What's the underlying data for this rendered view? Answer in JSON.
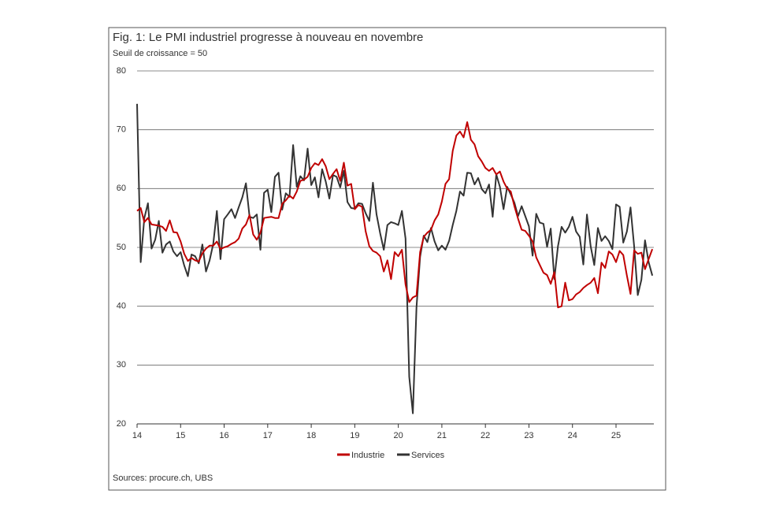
{
  "chart_data": {
    "type": "line",
    "title": "Fig. 1: Le PMI industriel progresse à nouveau en novembre",
    "subtitle": "Seuil de croissance = 50",
    "source": "Sources: procure.ch, UBS",
    "categories": [
      "14",
      null,
      null,
      null,
      null,
      null,
      null,
      null,
      null,
      null,
      null,
      null,
      "15",
      null,
      null,
      null,
      null,
      null,
      null,
      null,
      null,
      null,
      null,
      null,
      "16",
      null,
      null,
      null,
      null,
      null,
      null,
      null,
      null,
      null,
      null,
      null,
      "17",
      null,
      null,
      null,
      null,
      null,
      null,
      null,
      null,
      null,
      null,
      null,
      "18",
      null,
      null,
      null,
      null,
      null,
      null,
      null,
      null,
      null,
      null,
      null,
      "19",
      null,
      null,
      null,
      null,
      null,
      null,
      null,
      null,
      null,
      null,
      null,
      "20",
      null,
      null,
      null,
      null,
      null,
      null,
      null,
      null,
      null,
      null,
      null,
      "21",
      null,
      null,
      null,
      null,
      null,
      null,
      null,
      null,
      null,
      null,
      null,
      "22",
      null,
      null,
      null,
      null,
      null,
      null,
      null,
      null,
      null,
      null,
      null,
      "23",
      null,
      null,
      null,
      null,
      null,
      null,
      null,
      null,
      null,
      null,
      null,
      "24",
      null,
      null,
      null,
      null,
      null,
      null,
      null,
      null,
      null,
      null,
      null,
      "25",
      null,
      null,
      null,
      null,
      null,
      null,
      null,
      null,
      null,
      null
    ],
    "series": [
      {
        "name": "Industrie",
        "color": "#c00000",
        "values": [
          56.2,
          56.7,
          54.3,
          55.0,
          53.9,
          53.8,
          53.7,
          53.5,
          52.8,
          54.6,
          52.6,
          52.5,
          51.0,
          48.9,
          47.7,
          48.2,
          47.8,
          47.6,
          49.0,
          49.8,
          50.3,
          50.3,
          51.0,
          49.7,
          50.0,
          50.2,
          50.6,
          50.9,
          51.5,
          53.2,
          53.9,
          55.5,
          52.2,
          51.3,
          52.5,
          55.0,
          55.1,
          55.2,
          55.0,
          55.0,
          57.4,
          58.0,
          58.8,
          58.3,
          59.5,
          61.3,
          61.5,
          62.0,
          63.5,
          64.3,
          64.0,
          65.0,
          63.8,
          61.6,
          62.5,
          63.3,
          61.3,
          64.4,
          60.5,
          60.8,
          56.5,
          57.2,
          56.9,
          52.7,
          50.2,
          49.4,
          49.1,
          48.5,
          45.9,
          47.8,
          44.6,
          49.2,
          48.5,
          49.6,
          43.7,
          40.7,
          41.5,
          41.8,
          49.2,
          51.8,
          52.5,
          53.0,
          54.6,
          55.6,
          57.8,
          60.8,
          61.6,
          66.4,
          69.0,
          69.7,
          68.7,
          71.3,
          68.3,
          67.5,
          65.5,
          64.6,
          63.5,
          63.0,
          63.5,
          62.4,
          62.9,
          61.2,
          60.0,
          59.5,
          57.0,
          54.9,
          53.0,
          52.8,
          52.0,
          51.0,
          48.3,
          47.0,
          45.7,
          45.3,
          43.8,
          45.8,
          39.8,
          40.0,
          44.0,
          41.0,
          41.2,
          42.0,
          42.4,
          43.1,
          43.6,
          44.0,
          44.8,
          42.2,
          47.4,
          46.5,
          49.3,
          48.8,
          47.5,
          49.4,
          48.7,
          45.2,
          42.1,
          49.5,
          48.9,
          49.1,
          46.3,
          48.0,
          49.7
        ]
      },
      {
        "name": "Services",
        "color": "#333333",
        "values": [
          74.4,
          47.5,
          55.0,
          57.5,
          49.8,
          51.3,
          54.5,
          49.1,
          50.5,
          51.0,
          49.3,
          48.5,
          49.2,
          46.9,
          45.1,
          48.8,
          48.5,
          47.3,
          50.5,
          45.9,
          47.8,
          50.6,
          56.2,
          48.0,
          54.8,
          55.6,
          56.5,
          55.0,
          56.8,
          58.5,
          60.9,
          55.2,
          55.0,
          55.6,
          49.6,
          59.3,
          59.8,
          56.0,
          62.0,
          62.7,
          56.4,
          59.2,
          58.6,
          67.4,
          60.3,
          62.1,
          61.4,
          66.8,
          60.6,
          61.9,
          58.5,
          63.3,
          61.2,
          58.3,
          62.3,
          62.0,
          60.2,
          63.0,
          57.7,
          56.7,
          56.6,
          57.5,
          57.4,
          55.8,
          54.5,
          61.0,
          55.6,
          52.4,
          49.6,
          53.8,
          54.3,
          54.1,
          53.8,
          56.2,
          51.5,
          28.0,
          21.8,
          39.8,
          48.4,
          52.0,
          50.9,
          53.3,
          51.0,
          49.5,
          50.3,
          49.6,
          51.1,
          53.8,
          56.2,
          59.5,
          58.8,
          62.7,
          62.6,
          60.7,
          61.8,
          59.9,
          59.2,
          60.7,
          55.2,
          62.4,
          60.3,
          56.5,
          60.3,
          59.0,
          57.6,
          55.3,
          57.0,
          55.3,
          53.6,
          48.6,
          55.7,
          54.2,
          54.0,
          50.1,
          53.2,
          44.6,
          50.2,
          53.5,
          52.5,
          53.5,
          55.2,
          52.7,
          51.8,
          47.1,
          55.6,
          50.2,
          47.0,
          53.3,
          51.1,
          51.9,
          51.1,
          49.7,
          57.3,
          56.9,
          50.8,
          52.7,
          56.8,
          50.2,
          41.9,
          44.5,
          51.2,
          47.5,
          45.2
        ]
      }
    ],
    "ylim": [
      20,
      80
    ],
    "yticks": [
      20,
      30,
      40,
      50,
      60,
      70,
      80
    ],
    "grid": true,
    "legend": "bottom"
  }
}
